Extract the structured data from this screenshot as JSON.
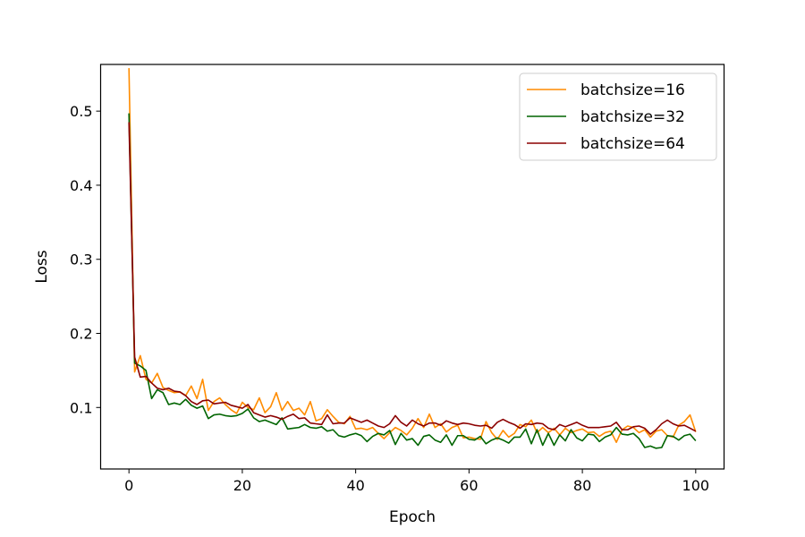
{
  "chart_data": {
    "type": "line",
    "title": "",
    "xlabel": "Epoch",
    "ylabel": "Loss",
    "xlim": [
      -5,
      105
    ],
    "ylim": [
      0.017,
      0.563
    ],
    "xticks": [
      0,
      20,
      40,
      60,
      80,
      100
    ],
    "yticks": [
      0.1,
      0.2,
      0.3,
      0.4,
      0.5
    ],
    "grid": false,
    "legend": "top-right",
    "x": [
      0,
      1,
      2,
      3,
      4,
      5,
      6,
      7,
      8,
      9,
      10,
      11,
      12,
      13,
      14,
      15,
      16,
      17,
      18,
      19,
      20,
      21,
      22,
      23,
      24,
      25,
      26,
      27,
      28,
      29,
      30,
      31,
      32,
      33,
      34,
      35,
      36,
      37,
      38,
      39,
      40,
      41,
      42,
      43,
      44,
      45,
      46,
      47,
      48,
      49,
      50,
      51,
      52,
      53,
      54,
      55,
      56,
      57,
      58,
      59,
      60,
      61,
      62,
      63,
      64,
      65,
      66,
      67,
      68,
      69,
      70,
      71,
      72,
      73,
      74,
      75,
      76,
      77,
      78,
      79,
      80,
      81,
      82,
      83,
      84,
      85,
      86,
      87,
      88,
      89,
      90,
      91,
      92,
      93,
      94,
      95,
      96,
      97,
      98,
      99,
      100
    ],
    "series": [
      {
        "name": "batchsize=16",
        "color": "#ff8c00",
        "values": [
          0.558,
          0.148,
          0.17,
          0.138,
          0.133,
          0.146,
          0.127,
          0.123,
          0.12,
          0.121,
          0.116,
          0.129,
          0.112,
          0.138,
          0.096,
          0.108,
          0.113,
          0.104,
          0.097,
          0.092,
          0.107,
          0.1,
          0.097,
          0.113,
          0.093,
          0.101,
          0.12,
          0.096,
          0.108,
          0.096,
          0.099,
          0.09,
          0.108,
          0.082,
          0.085,
          0.097,
          0.088,
          0.08,
          0.078,
          0.088,
          0.071,
          0.072,
          0.07,
          0.073,
          0.065,
          0.058,
          0.066,
          0.073,
          0.069,
          0.063,
          0.072,
          0.085,
          0.073,
          0.091,
          0.073,
          0.078,
          0.067,
          0.073,
          0.076,
          0.059,
          0.06,
          0.058,
          0.057,
          0.081,
          0.066,
          0.057,
          0.069,
          0.06,
          0.065,
          0.077,
          0.074,
          0.083,
          0.066,
          0.073,
          0.066,
          0.072,
          0.063,
          0.072,
          0.066,
          0.069,
          0.071,
          0.066,
          0.067,
          0.061,
          0.066,
          0.068,
          0.053,
          0.07,
          0.075,
          0.073,
          0.066,
          0.07,
          0.06,
          0.068,
          0.07,
          0.062,
          0.06,
          0.076,
          0.081,
          0.09,
          0.067
        ]
      },
      {
        "name": "batchsize=32",
        "color": "#006400",
        "values": [
          0.497,
          0.16,
          0.156,
          0.15,
          0.112,
          0.124,
          0.12,
          0.104,
          0.106,
          0.104,
          0.111,
          0.103,
          0.099,
          0.102,
          0.085,
          0.09,
          0.091,
          0.089,
          0.088,
          0.089,
          0.092,
          0.098,
          0.086,
          0.081,
          0.083,
          0.08,
          0.077,
          0.086,
          0.071,
          0.072,
          0.073,
          0.077,
          0.073,
          0.072,
          0.074,
          0.068,
          0.07,
          0.062,
          0.06,
          0.063,
          0.065,
          0.062,
          0.054,
          0.061,
          0.065,
          0.063,
          0.069,
          0.05,
          0.065,
          0.056,
          0.058,
          0.049,
          0.061,
          0.063,
          0.056,
          0.053,
          0.063,
          0.049,
          0.062,
          0.062,
          0.057,
          0.056,
          0.061,
          0.051,
          0.056,
          0.059,
          0.056,
          0.052,
          0.06,
          0.06,
          0.071,
          0.051,
          0.07,
          0.049,
          0.065,
          0.049,
          0.063,
          0.055,
          0.07,
          0.059,
          0.055,
          0.064,
          0.063,
          0.054,
          0.06,
          0.063,
          0.073,
          0.064,
          0.063,
          0.065,
          0.058,
          0.046,
          0.048,
          0.045,
          0.046,
          0.062,
          0.061,
          0.056,
          0.062,
          0.064,
          0.055
        ]
      },
      {
        "name": "batchsize=64",
        "color": "#8b0000",
        "values": [
          0.485,
          0.168,
          0.141,
          0.142,
          0.133,
          0.126,
          0.124,
          0.126,
          0.122,
          0.121,
          0.116,
          0.108,
          0.104,
          0.109,
          0.11,
          0.105,
          0.106,
          0.107,
          0.103,
          0.101,
          0.099,
          0.104,
          0.093,
          0.09,
          0.087,
          0.089,
          0.087,
          0.084,
          0.088,
          0.091,
          0.085,
          0.086,
          0.079,
          0.078,
          0.077,
          0.09,
          0.078,
          0.079,
          0.079,
          0.086,
          0.083,
          0.08,
          0.083,
          0.079,
          0.075,
          0.073,
          0.078,
          0.089,
          0.08,
          0.075,
          0.083,
          0.078,
          0.075,
          0.079,
          0.079,
          0.076,
          0.082,
          0.079,
          0.077,
          0.079,
          0.078,
          0.076,
          0.075,
          0.076,
          0.072,
          0.08,
          0.084,
          0.08,
          0.077,
          0.072,
          0.078,
          0.077,
          0.079,
          0.078,
          0.072,
          0.07,
          0.077,
          0.074,
          0.077,
          0.08,
          0.076,
          0.073,
          0.073,
          0.073,
          0.074,
          0.075,
          0.08,
          0.07,
          0.07,
          0.074,
          0.075,
          0.072,
          0.064,
          0.07,
          0.078,
          0.083,
          0.078,
          0.075,
          0.076,
          0.072,
          0.068
        ]
      }
    ]
  }
}
